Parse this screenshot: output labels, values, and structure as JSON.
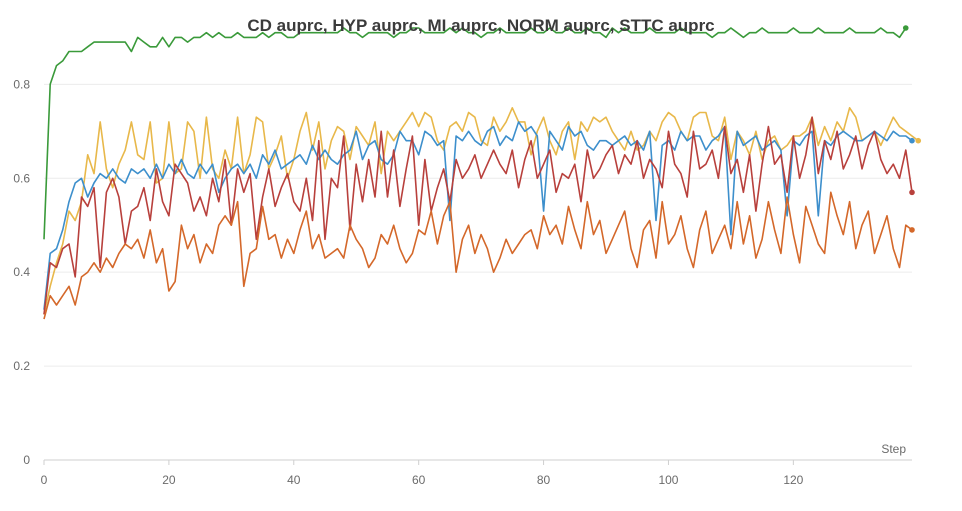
{
  "chart_data": {
    "type": "line",
    "title": "CD auprc, HYP auprc, MI auprc, NORM auprc, STTC auprc",
    "xlabel": "Step",
    "ylabel": "",
    "xlim": [
      0,
      139
    ],
    "ylim": [
      0,
      0.92
    ],
    "x_ticks": [
      0,
      20,
      40,
      60,
      80,
      100,
      120
    ],
    "y_ticks": [
      0,
      0.2,
      0.4,
      0.6,
      0.8
    ],
    "grid": true,
    "series": [
      {
        "color": "#3a9a3a",
        "values": [
          0.47,
          0.8,
          0.84,
          0.85,
          0.87,
          0.87,
          0.87,
          0.88,
          0.89,
          0.89,
          0.89,
          0.89,
          0.89,
          0.89,
          0.87,
          0.9,
          0.89,
          0.88,
          0.88,
          0.9,
          0.88,
          0.9,
          0.9,
          0.89,
          0.9,
          0.9,
          0.91,
          0.9,
          0.91,
          0.9,
          0.9,
          0.91,
          0.9,
          0.9,
          0.9,
          0.91,
          0.9,
          0.91,
          0.91,
          0.9,
          0.9,
          0.91,
          0.91,
          0.91,
          0.91,
          0.91,
          0.91,
          0.91,
          0.92,
          0.91,
          0.91,
          0.9,
          0.91,
          0.91,
          0.91,
          0.91,
          0.9,
          0.91,
          0.91,
          0.92,
          0.92,
          0.91,
          0.91,
          0.91,
          0.91,
          0.92,
          0.91,
          0.92,
          0.91,
          0.91,
          0.9,
          0.91,
          0.91,
          0.92,
          0.91,
          0.91,
          0.91,
          0.91,
          0.92,
          0.91,
          0.91,
          0.92,
          0.91,
          0.91,
          0.92,
          0.91,
          0.91,
          0.92,
          0.91,
          0.91,
          0.9,
          0.92,
          0.91,
          0.92,
          0.91,
          0.91,
          0.91,
          0.92,
          0.91,
          0.91,
          0.91,
          0.91,
          0.92,
          0.91,
          0.91,
          0.91,
          0.91,
          0.9,
          0.91,
          0.91,
          0.92,
          0.91,
          0.9,
          0.91,
          0.91,
          0.92,
          0.91,
          0.91,
          0.91,
          0.91,
          0.92,
          0.91,
          0.91,
          0.91,
          0.92,
          0.91,
          0.91,
          0.91,
          0.91,
          0.92,
          0.91,
          0.91,
          0.91,
          0.91,
          0.92,
          0.91,
          0.91,
          0.9,
          0.92
        ]
      },
      {
        "color": "#e8b84a",
        "values": [
          0.31,
          0.37,
          0.42,
          0.46,
          0.53,
          0.51,
          0.55,
          0.65,
          0.61,
          0.72,
          0.62,
          0.58,
          0.63,
          0.66,
          0.72,
          0.65,
          0.64,
          0.72,
          0.59,
          0.6,
          0.72,
          0.61,
          0.62,
          0.72,
          0.7,
          0.6,
          0.73,
          0.62,
          0.6,
          0.66,
          0.62,
          0.73,
          0.61,
          0.65,
          0.73,
          0.72,
          0.62,
          0.65,
          0.69,
          0.6,
          0.64,
          0.7,
          0.74,
          0.66,
          0.72,
          0.62,
          0.68,
          0.71,
          0.7,
          0.64,
          0.71,
          0.69,
          0.67,
          0.72,
          0.61,
          0.7,
          0.68,
          0.7,
          0.72,
          0.74,
          0.71,
          0.74,
          0.73,
          0.68,
          0.66,
          0.71,
          0.72,
          0.7,
          0.74,
          0.73,
          0.68,
          0.67,
          0.73,
          0.7,
          0.72,
          0.75,
          0.72,
          0.72,
          0.65,
          0.7,
          0.73,
          0.68,
          0.65,
          0.7,
          0.72,
          0.64,
          0.72,
          0.7,
          0.73,
          0.72,
          0.73,
          0.7,
          0.68,
          0.66,
          0.7,
          0.66,
          0.67,
          0.7,
          0.68,
          0.72,
          0.74,
          0.73,
          0.7,
          0.68,
          0.73,
          0.74,
          0.74,
          0.69,
          0.68,
          0.73,
          0.64,
          0.7,
          0.68,
          0.65,
          0.7,
          0.64,
          0.68,
          0.69,
          0.66,
          0.67,
          0.69,
          0.69,
          0.7,
          0.73,
          0.67,
          0.71,
          0.68,
          0.72,
          0.7,
          0.75,
          0.73,
          0.68,
          0.69,
          0.7,
          0.67,
          0.7,
          0.73,
          0.71,
          0.7,
          0.69,
          0.68
        ]
      },
      {
        "color": "#3d8fcc",
        "values": [
          0.32,
          0.44,
          0.45,
          0.49,
          0.55,
          0.59,
          0.6,
          0.56,
          0.59,
          0.61,
          0.6,
          0.62,
          0.6,
          0.59,
          0.62,
          0.61,
          0.62,
          0.6,
          0.63,
          0.6,
          0.63,
          0.61,
          0.64,
          0.61,
          0.6,
          0.63,
          0.61,
          0.63,
          0.57,
          0.6,
          0.62,
          0.63,
          0.61,
          0.63,
          0.6,
          0.65,
          0.63,
          0.66,
          0.62,
          0.63,
          0.64,
          0.65,
          0.63,
          0.67,
          0.64,
          0.66,
          0.64,
          0.63,
          0.65,
          0.66,
          0.7,
          0.64,
          0.67,
          0.68,
          0.64,
          0.63,
          0.65,
          0.7,
          0.68,
          0.68,
          0.65,
          0.7,
          0.69,
          0.67,
          0.68,
          0.51,
          0.69,
          0.68,
          0.7,
          0.68,
          0.67,
          0.7,
          0.71,
          0.67,
          0.69,
          0.68,
          0.72,
          0.7,
          0.71,
          0.69,
          0.53,
          0.7,
          0.68,
          0.66,
          0.71,
          0.69,
          0.7,
          0.67,
          0.66,
          0.68,
          0.68,
          0.67,
          0.68,
          0.69,
          0.67,
          0.68,
          0.66,
          0.7,
          0.51,
          0.67,
          0.68,
          0.66,
          0.7,
          0.68,
          0.69,
          0.69,
          0.66,
          0.68,
          0.69,
          0.71,
          0.48,
          0.7,
          0.67,
          0.68,
          0.69,
          0.66,
          0.67,
          0.68,
          0.66,
          0.52,
          0.68,
          0.67,
          0.69,
          0.7,
          0.52,
          0.68,
          0.67,
          0.69,
          0.7,
          0.69,
          0.68,
          0.68,
          0.69,
          0.7,
          0.69,
          0.68,
          0.7,
          0.69,
          0.69,
          0.68
        ]
      },
      {
        "color": "#b8403c",
        "values": [
          0.31,
          0.42,
          0.41,
          0.45,
          0.46,
          0.39,
          0.56,
          0.54,
          0.58,
          0.41,
          0.57,
          0.6,
          0.56,
          0.46,
          0.53,
          0.54,
          0.58,
          0.51,
          0.62,
          0.55,
          0.52,
          0.63,
          0.61,
          0.59,
          0.53,
          0.56,
          0.52,
          0.6,
          0.55,
          0.64,
          0.5,
          0.62,
          0.57,
          0.61,
          0.47,
          0.56,
          0.62,
          0.54,
          0.58,
          0.61,
          0.55,
          0.53,
          0.6,
          0.51,
          0.68,
          0.47,
          0.6,
          0.58,
          0.69,
          0.49,
          0.63,
          0.55,
          0.64,
          0.56,
          0.7,
          0.56,
          0.66,
          0.54,
          0.62,
          0.69,
          0.5,
          0.64,
          0.53,
          0.58,
          0.62,
          0.55,
          0.64,
          0.6,
          0.62,
          0.65,
          0.6,
          0.63,
          0.66,
          0.63,
          0.61,
          0.66,
          0.58,
          0.64,
          0.68,
          0.6,
          0.63,
          0.66,
          0.57,
          0.61,
          0.6,
          0.63,
          0.55,
          0.66,
          0.6,
          0.62,
          0.65,
          0.67,
          0.61,
          0.65,
          0.63,
          0.68,
          0.6,
          0.64,
          0.62,
          0.58,
          0.7,
          0.63,
          0.61,
          0.56,
          0.7,
          0.62,
          0.63,
          0.66,
          0.6,
          0.71,
          0.61,
          0.64,
          0.57,
          0.65,
          0.53,
          0.63,
          0.71,
          0.63,
          0.65,
          0.57,
          0.69,
          0.6,
          0.65,
          0.73,
          0.61,
          0.68,
          0.64,
          0.7,
          0.62,
          0.65,
          0.69,
          0.62,
          0.67,
          0.7,
          0.64,
          0.61,
          0.63,
          0.6,
          0.66,
          0.57
        ]
      },
      {
        "color": "#d4682a",
        "values": [
          0.3,
          0.35,
          0.33,
          0.35,
          0.37,
          0.33,
          0.39,
          0.4,
          0.42,
          0.4,
          0.43,
          0.41,
          0.44,
          0.46,
          0.45,
          0.47,
          0.43,
          0.49,
          0.42,
          0.45,
          0.36,
          0.38,
          0.5,
          0.45,
          0.48,
          0.42,
          0.46,
          0.44,
          0.5,
          0.52,
          0.5,
          0.55,
          0.37,
          0.44,
          0.45,
          0.54,
          0.47,
          0.48,
          0.43,
          0.47,
          0.44,
          0.49,
          0.53,
          0.45,
          0.48,
          0.43,
          0.44,
          0.45,
          0.43,
          0.5,
          0.47,
          0.45,
          0.41,
          0.43,
          0.48,
          0.46,
          0.5,
          0.45,
          0.42,
          0.44,
          0.49,
          0.48,
          0.53,
          0.46,
          0.52,
          0.55,
          0.4,
          0.47,
          0.5,
          0.44,
          0.48,
          0.45,
          0.4,
          0.43,
          0.47,
          0.44,
          0.46,
          0.48,
          0.49,
          0.45,
          0.52,
          0.48,
          0.5,
          0.46,
          0.54,
          0.49,
          0.45,
          0.55,
          0.48,
          0.51,
          0.44,
          0.47,
          0.5,
          0.53,
          0.45,
          0.41,
          0.49,
          0.51,
          0.43,
          0.55,
          0.46,
          0.48,
          0.52,
          0.45,
          0.41,
          0.49,
          0.53,
          0.44,
          0.47,
          0.5,
          0.45,
          0.55,
          0.46,
          0.52,
          0.43,
          0.47,
          0.55,
          0.49,
          0.44,
          0.56,
          0.48,
          0.42,
          0.54,
          0.5,
          0.46,
          0.44,
          0.57,
          0.52,
          0.48,
          0.55,
          0.45,
          0.5,
          0.53,
          0.44,
          0.48,
          0.52,
          0.45,
          0.41,
          0.5,
          0.49
        ]
      }
    ]
  }
}
